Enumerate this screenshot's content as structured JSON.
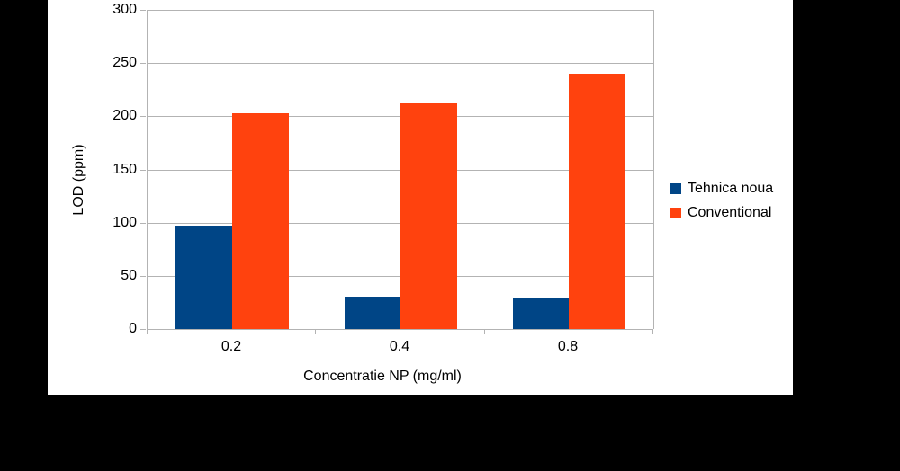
{
  "chart_data": {
    "type": "bar",
    "title": "",
    "categories": [
      "0.2",
      "0.4",
      "0.8"
    ],
    "series": [
      {
        "name": "Tehnica noua",
        "color": "#004586",
        "values": [
          97,
          30,
          29
        ]
      },
      {
        "name": "Conventional",
        "color": "#FF420E",
        "values": [
          203,
          212,
          240
        ]
      }
    ],
    "xlabel": "Concentratie NP (mg/ml)",
    "ylabel": "LOD (ppm)",
    "ylim": [
      0,
      300
    ],
    "ytick_step": 50,
    "ytick_labels": [
      "0",
      "50",
      "100",
      "150",
      "200",
      "250",
      "300"
    ],
    "grid": true,
    "gridline_color": "#b3b3b3",
    "text_color": "#000000",
    "plot_background": "#ffffff",
    "page_background": "#000000",
    "legend_position": "right"
  }
}
